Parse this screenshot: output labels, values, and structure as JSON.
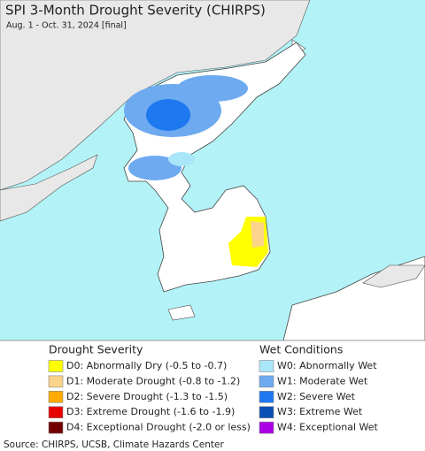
{
  "header": {
    "title": "SPI 3-Month Drought Severity (CHIRPS)",
    "subtitle": "Aug. 1 - Oct. 31, 2024 [final]"
  },
  "legend": {
    "drought": {
      "title": "Drought Severity",
      "items": [
        {
          "label": "D0: Abnormally Dry (-0.5 to -0.7)",
          "color": "#ffff00"
        },
        {
          "label": "D1: Moderate Drought (-0.8 to -1.2)",
          "color": "#fcd38a"
        },
        {
          "label": "D2: Severe Drought (-1.3 to -1.5)",
          "color": "#ffaa00"
        },
        {
          "label": "D3: Extreme Drought (-1.6 to -1.9)",
          "color": "#e60000"
        },
        {
          "label": "D4: Exceptional Drought (-2.0 or less)",
          "color": "#730000"
        }
      ]
    },
    "wet": {
      "title": "Wet Conditions",
      "items": [
        {
          "label": "W0: Abnormally Wet",
          "color": "#aae6fa"
        },
        {
          "label": "W1: Moderate Wet",
          "color": "#6eaaf0"
        },
        {
          "label": "W2: Severe Wet",
          "color": "#1e78f0"
        },
        {
          "label": "W3: Extreme Wet",
          "color": "#0a50b4"
        },
        {
          "label": "W4: Exceptional Wet",
          "color": "#aa00e6"
        }
      ]
    }
  },
  "source": "Source: CHIRPS, UCSB, Climate Hazards Center"
}
